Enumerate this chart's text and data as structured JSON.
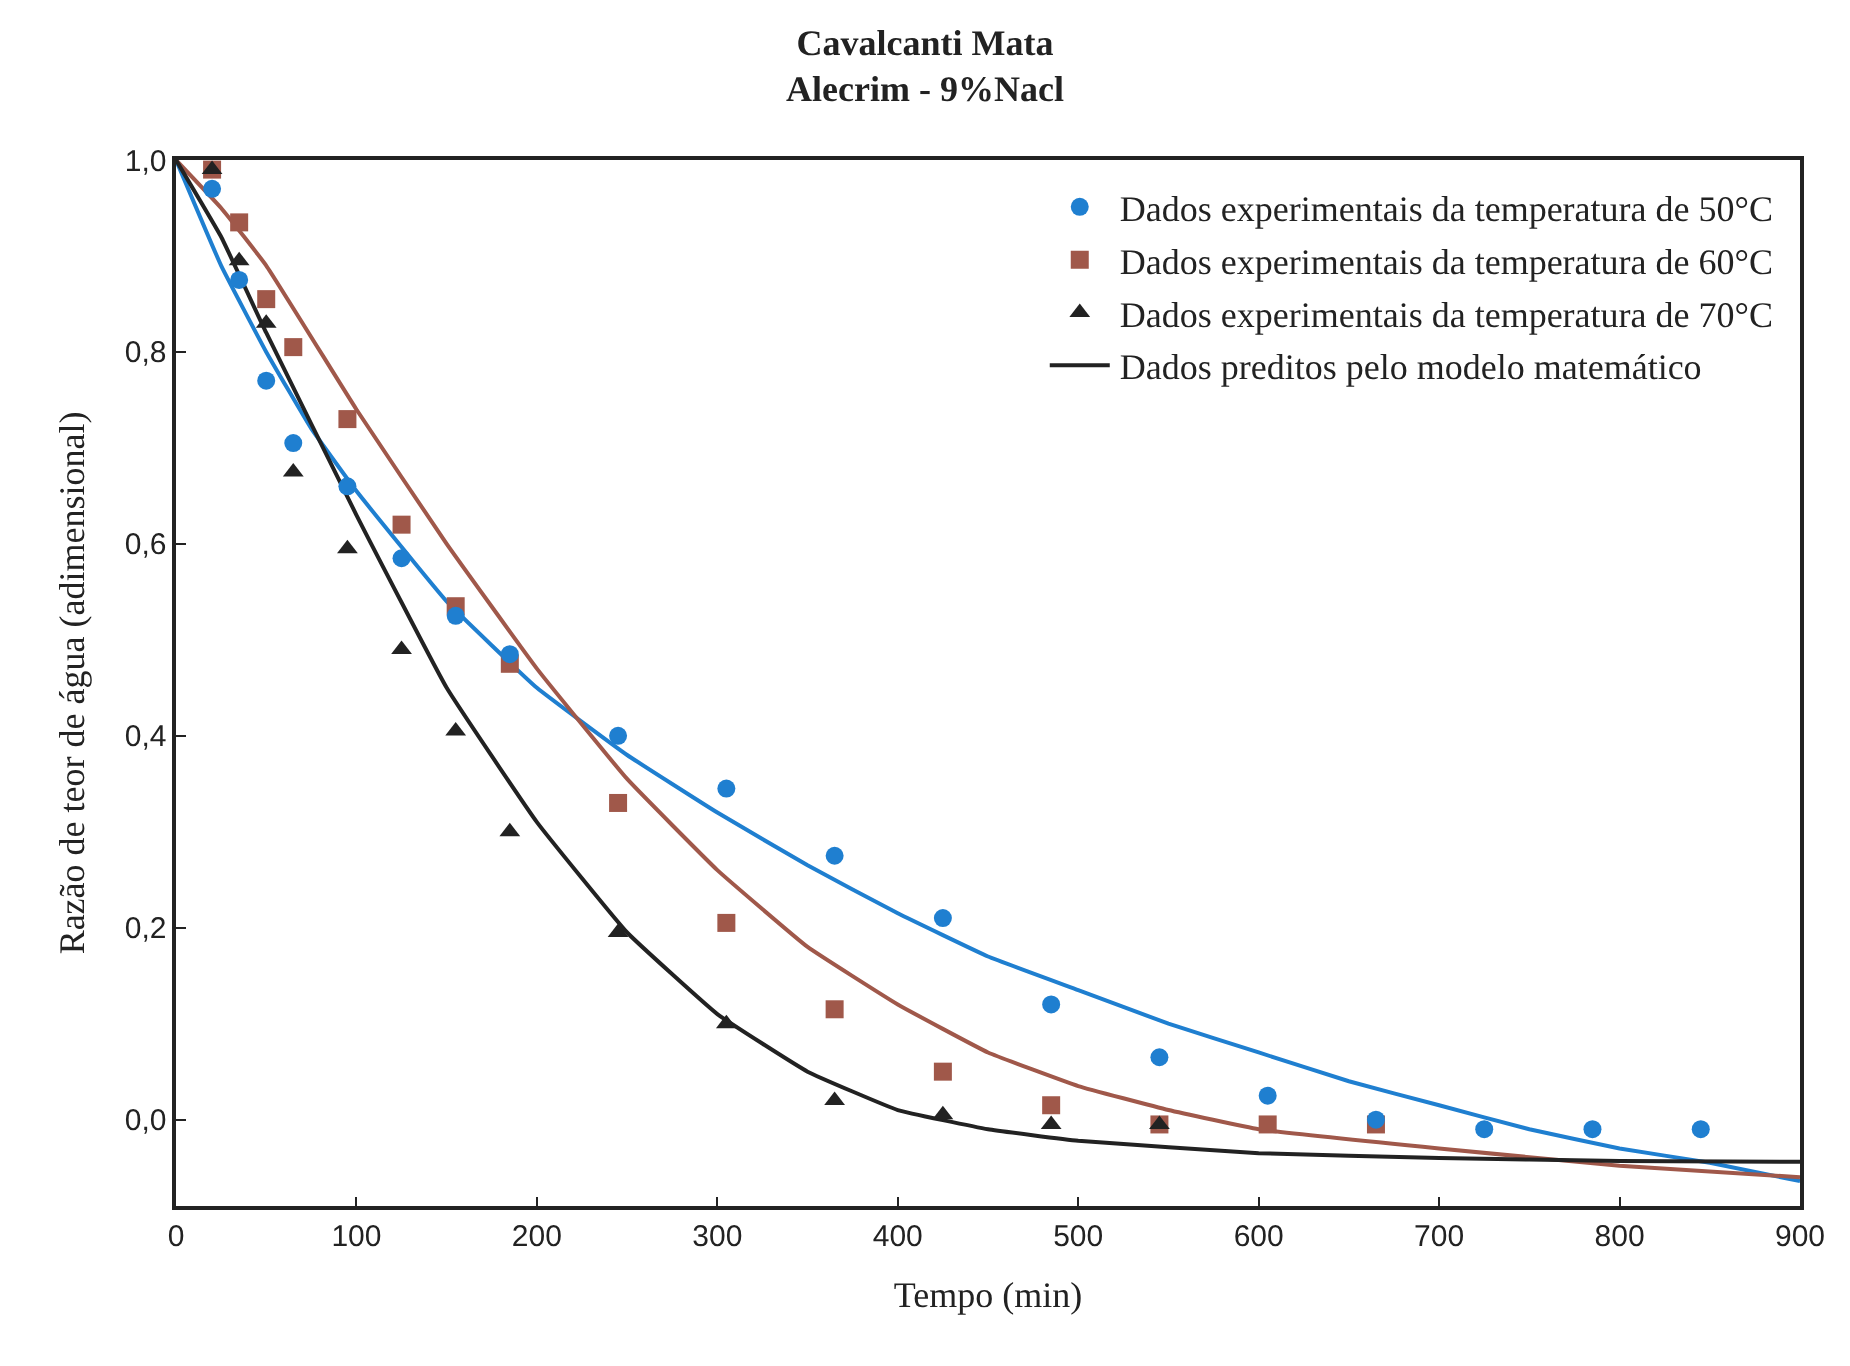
{
  "chart_data": {
    "type": "scatter",
    "title": "Cavalcanti Mata",
    "subtitle": "Alecrim - 9%Nacl",
    "xlabel": "Tempo (min)",
    "ylabel": "Razão de teor de água (adimensional)",
    "xlim": [
      0,
      900
    ],
    "xticks": [
      0,
      100,
      200,
      300,
      400,
      500,
      600,
      700,
      800,
      900
    ],
    "ylim": [
      -0.09,
      1.0
    ],
    "yticks": [
      {
        "value": 0,
        "label": "0,0"
      },
      {
        "value": 0.2,
        "label": "0,2"
      },
      {
        "value": 0.4,
        "label": "0,4"
      },
      {
        "value": 0.6,
        "label": "0,6"
      },
      {
        "value": 0.8,
        "label": "0,8"
      },
      {
        "value": 1.0,
        "label": "1,0"
      }
    ],
    "legend": "top right",
    "series": [
      {
        "name": "Dados experimentais da temperatura de 50°C",
        "marker": "circle",
        "color": "#1f7fd0",
        "x": [
          20,
          35,
          50,
          65,
          95,
          125,
          155,
          185,
          245,
          305,
          365,
          425,
          485,
          545,
          605,
          665,
          725,
          785,
          845
        ],
        "values": [
          0.97,
          0.875,
          0.77,
          0.705,
          0.66,
          0.585,
          0.525,
          0.485,
          0.4,
          0.345,
          0.275,
          0.21,
          0.12,
          0.065,
          0.025,
          0.0,
          -0.01,
          -0.01,
          -0.01
        ]
      },
      {
        "name": "Dados experimentais da temperatura de 60°C",
        "marker": "square",
        "color": "#a0584a",
        "x": [
          20,
          35,
          50,
          65,
          95,
          125,
          155,
          185,
          245,
          305,
          365,
          425,
          485,
          545,
          605,
          665
        ],
        "values": [
          0.99,
          0.935,
          0.855,
          0.805,
          0.73,
          0.62,
          0.535,
          0.475,
          0.33,
          0.205,
          0.115,
          0.05,
          0.015,
          -0.005,
          -0.005,
          -0.005
        ]
      },
      {
        "name": "Dados experimentais da temperatura de 70°C",
        "marker": "triangle",
        "color": "#222222",
        "x": [
          20,
          35,
          50,
          65,
          95,
          125,
          155,
          185,
          245,
          305,
          365,
          425,
          485,
          545
        ],
        "values": [
          0.99,
          0.895,
          0.83,
          0.675,
          0.595,
          0.49,
          0.405,
          0.3,
          0.195,
          0.1,
          0.02,
          0.005,
          -0.005,
          -0.005
        ]
      },
      {
        "type": "line",
        "marker": "none",
        "color": "#1f7fd0",
        "x": [
          0,
          25,
          50,
          75,
          100,
          150,
          200,
          250,
          300,
          350,
          400,
          450,
          500,
          550,
          600,
          650,
          700,
          750,
          800,
          850,
          900
        ],
        "values": [
          1.0,
          0.89,
          0.8,
          0.72,
          0.655,
          0.54,
          0.45,
          0.38,
          0.32,
          0.265,
          0.215,
          0.17,
          0.135,
          0.1,
          0.07,
          0.04,
          0.015,
          -0.01,
          -0.03,
          -0.045,
          -0.064
        ]
      },
      {
        "type": "line",
        "marker": "none",
        "color": "#a0584a",
        "x": [
          0,
          25,
          50,
          100,
          150,
          200,
          250,
          300,
          350,
          400,
          450,
          500,
          550,
          600,
          700,
          800,
          900
        ],
        "values": [
          1.0,
          0.95,
          0.89,
          0.74,
          0.6,
          0.47,
          0.355,
          0.26,
          0.18,
          0.12,
          0.07,
          0.035,
          0.01,
          -0.01,
          -0.03,
          -0.048,
          -0.06
        ]
      },
      {
        "name": "Dados preditos pelo modelo matemático",
        "type": "line",
        "marker": "none",
        "color": "#222222",
        "x": [
          0,
          25,
          50,
          100,
          150,
          200,
          250,
          300,
          350,
          400,
          450,
          500,
          600,
          700,
          800,
          900
        ],
        "values": [
          1.0,
          0.92,
          0.82,
          0.63,
          0.45,
          0.31,
          0.195,
          0.11,
          0.05,
          0.01,
          -0.01,
          -0.022,
          -0.035,
          -0.04,
          -0.043,
          -0.044
        ]
      }
    ]
  }
}
